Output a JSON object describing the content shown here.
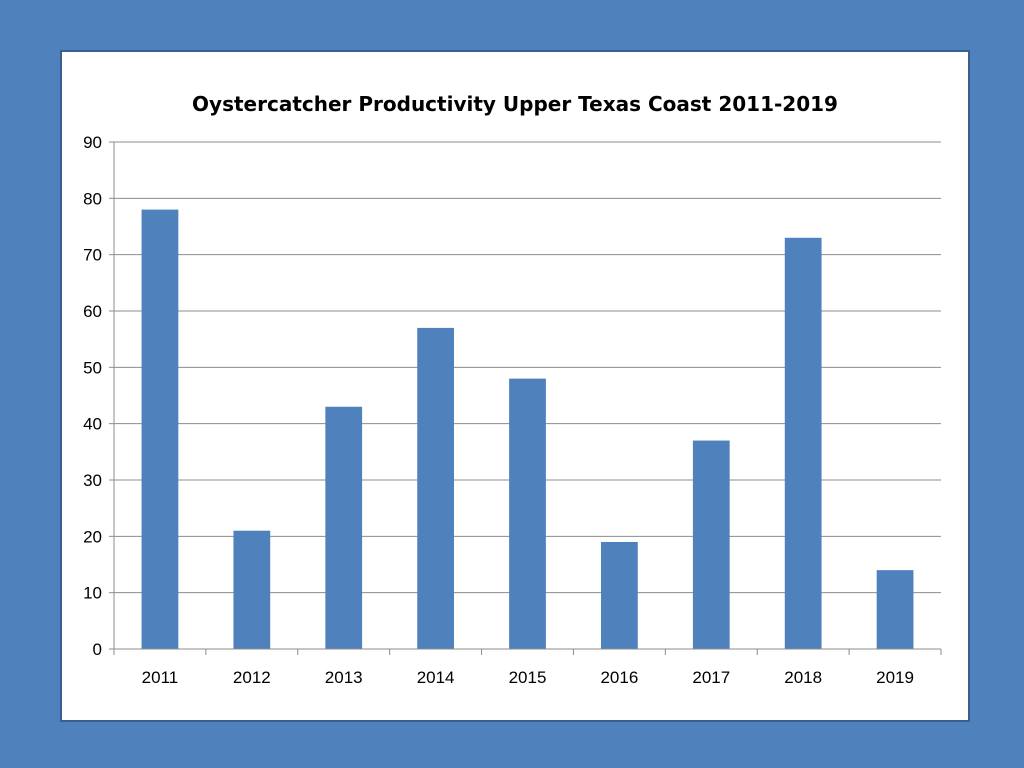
{
  "chart_data": {
    "type": "bar",
    "title": "Oystercatcher Productivity Upper Texas Coast 2011-2019",
    "categories": [
      "2011",
      "2012",
      "2013",
      "2014",
      "2015",
      "2016",
      "2017",
      "2018",
      "2019"
    ],
    "values": [
      78,
      21,
      43,
      57,
      48,
      19,
      37,
      73,
      14
    ],
    "ylim": [
      0,
      90
    ],
    "yticks": [
      0,
      10,
      20,
      30,
      40,
      50,
      60,
      70,
      80,
      90
    ],
    "xlabel": "",
    "ylabel": "",
    "grid": true,
    "legend": "none",
    "bar_color": "#4f81bd",
    "background_color": "#4f81bd"
  }
}
